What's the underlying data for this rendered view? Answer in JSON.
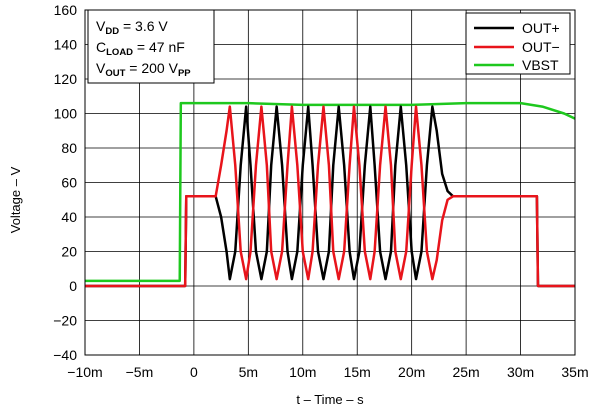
{
  "chart_data": {
    "type": "line",
    "xlabel": "t – Time – s",
    "ylabel": "Voltage – V",
    "xlim": [
      -0.01,
      0.035
    ],
    "ylim": [
      -40,
      160
    ],
    "x_ticks": [
      -0.01,
      -0.005,
      0,
      0.005,
      0.01,
      0.015,
      0.02,
      0.025,
      0.03,
      0.035
    ],
    "x_tick_labels": [
      "−10m",
      "−5m",
      "0",
      "5m",
      "10m",
      "15m",
      "20m",
      "25m",
      "30m",
      "35m"
    ],
    "y_ticks": [
      -40,
      -20,
      0,
      20,
      40,
      60,
      80,
      100,
      120,
      140,
      160
    ],
    "y_tick_labels": [
      "−40",
      "−20",
      "0",
      "20",
      "40",
      "60",
      "80",
      "100",
      "120",
      "140",
      "160"
    ],
    "grid": true,
    "legend_position": "top-right",
    "annotations": [
      {
        "main": "V",
        "sub": "DD",
        "rest": " = 3.6 V"
      },
      {
        "main": "C",
        "sub": "LOAD",
        "rest": " = 47 nF"
      },
      {
        "main": "V",
        "sub": "OUT",
        "rest": " = 200 V",
        "sub2": "PP"
      }
    ],
    "series": [
      {
        "name": "OUT+",
        "color": "#000000",
        "x": [
          -0.01,
          -0.0008,
          -0.0007,
          0.002,
          0.0025,
          0.003,
          0.0033,
          0.0038,
          0.0043,
          0.0048,
          0.0052,
          0.0057,
          0.0062,
          0.0067,
          0.0071,
          0.0076,
          0.0081,
          0.0086,
          0.009,
          0.0095,
          0.01,
          0.0105,
          0.0109,
          0.0114,
          0.0119,
          0.0124,
          0.0128,
          0.0133,
          0.0138,
          0.0143,
          0.0147,
          0.0152,
          0.0157,
          0.0162,
          0.0166,
          0.0171,
          0.0176,
          0.0181,
          0.0185,
          0.019,
          0.0195,
          0.02,
          0.0204,
          0.0209,
          0.0214,
          0.0219,
          0.0223,
          0.0228,
          0.0233,
          0.0238,
          0.025,
          0.0315,
          0.0316,
          0.035
        ],
        "y": [
          0,
          0,
          52,
          52,
          40,
          20,
          4,
          20,
          70,
          104,
          70,
          20,
          4,
          20,
          70,
          104,
          70,
          20,
          4,
          20,
          70,
          104,
          70,
          20,
          4,
          20,
          70,
          104,
          70,
          20,
          4,
          20,
          70,
          104,
          70,
          20,
          4,
          20,
          70,
          104,
          70,
          20,
          4,
          20,
          70,
          104,
          90,
          65,
          55,
          52,
          52,
          52,
          0,
          0
        ]
      },
      {
        "name": "OUT−",
        "color": "#e8141b",
        "x": [
          -0.01,
          -0.0008,
          -0.0007,
          0.002,
          0.0025,
          0.003,
          0.0033,
          0.0038,
          0.0043,
          0.0048,
          0.0052,
          0.0057,
          0.0062,
          0.0067,
          0.0071,
          0.0076,
          0.0081,
          0.0086,
          0.009,
          0.0095,
          0.01,
          0.0105,
          0.0109,
          0.0114,
          0.0119,
          0.0124,
          0.0128,
          0.0133,
          0.0138,
          0.0143,
          0.0147,
          0.0152,
          0.0157,
          0.0162,
          0.0166,
          0.0171,
          0.0176,
          0.0181,
          0.0185,
          0.019,
          0.0195,
          0.02,
          0.0204,
          0.0209,
          0.0214,
          0.0219,
          0.0223,
          0.0228,
          0.0233,
          0.0238,
          0.025,
          0.0315,
          0.0316,
          0.035
        ],
        "y": [
          0,
          0,
          52,
          52,
          70,
          90,
          104,
          70,
          20,
          4,
          20,
          70,
          104,
          70,
          20,
          4,
          20,
          70,
          104,
          70,
          20,
          4,
          20,
          70,
          104,
          70,
          20,
          4,
          20,
          70,
          104,
          70,
          20,
          4,
          20,
          70,
          104,
          70,
          20,
          4,
          20,
          70,
          104,
          70,
          20,
          4,
          15,
          38,
          50,
          52,
          52,
          52,
          0,
          0
        ]
      },
      {
        "name": "VBST",
        "color": "#1ec81e",
        "x": [
          -0.01,
          -0.0013,
          -0.0012,
          0.005,
          0.01,
          0.015,
          0.02,
          0.025,
          0.03,
          0.032,
          0.034,
          0.035
        ],
        "y": [
          3,
          3,
          106,
          106,
          105,
          105,
          105,
          106,
          106,
          104,
          100,
          97
        ]
      }
    ]
  }
}
